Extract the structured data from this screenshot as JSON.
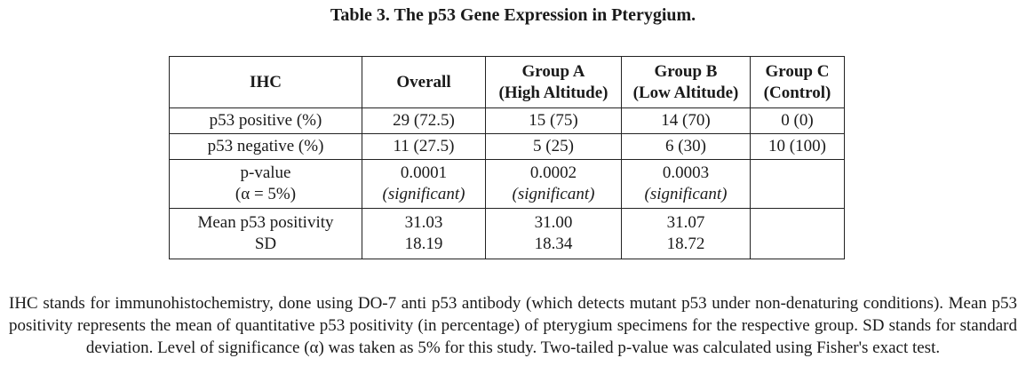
{
  "title": "Table 3. The p53 Gene Expression in Pterygium.",
  "header": {
    "ihc": "IHC",
    "overall": "Overall",
    "group_a": [
      "Group A",
      "(High Altitude)"
    ],
    "group_b": [
      "Group B",
      "(Low Altitude)"
    ],
    "group_c": [
      "Group C",
      "(Control)"
    ]
  },
  "rows": {
    "positive": {
      "label": "p53 positive (%)",
      "overall": "29 (72.5)",
      "a": "15 (75)",
      "b": "14 (70)",
      "c": "0 (0)"
    },
    "negative": {
      "label": "p53 negative (%)",
      "overall": "11 (27.5)",
      "a": "5 (25)",
      "b": "6 (30)",
      "c": "10 (100)"
    },
    "pvalue": {
      "label": [
        "p-value",
        "(α = 5%)"
      ],
      "overall": [
        "0.0001",
        "(significant)"
      ],
      "a": [
        "0.0002",
        "(significant)"
      ],
      "b": [
        "0.0003",
        "(significant)"
      ],
      "c": ""
    },
    "mean": {
      "label": [
        "Mean p53 positivity",
        "SD"
      ],
      "overall": [
        "31.03",
        "18.19"
      ],
      "a": [
        "31.00",
        "18.34"
      ],
      "b": [
        "31.07",
        "18.72"
      ],
      "c": ""
    }
  },
  "note": "IHC stands for immunohistochemistry, done using DO-7 anti p53 antibody (which detects mutant p53 under non-denaturing conditions). Mean p53 positivity represents the mean of quantitative p53 positivity (in percentage) of pterygium specimens for the respective group. SD stands for standard deviation. Level of significance (α) was taken as 5% for this study. Two-tailed p-value was calculated using Fisher's exact test."
}
